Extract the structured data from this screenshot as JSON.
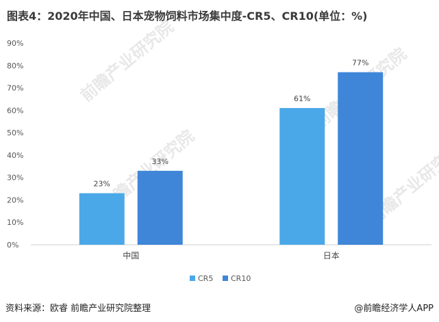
{
  "title": "图表4：2020年中国、日本宠物饲料市场集中度-CR5、CR10(单位：%)",
  "source": "资料来源：欧睿 前瞻产业研究院整理",
  "credit": "@前瞻经济学人APP",
  "watermark_text": "前瞻产业研究院",
  "chart_data": {
    "type": "bar",
    "title": "图表4：2020年中国、日本宠物饲料市场集中度-CR5、CR10(单位：%)",
    "xlabel": "",
    "ylabel": "",
    "categories": [
      "中国",
      "日本"
    ],
    "series": [
      {
        "name": "CR5",
        "values": [
          23,
          61
        ],
        "color": "#4aa8e8"
      },
      {
        "name": "CR10",
        "values": [
          33,
          77
        ],
        "color": "#3f86d8"
      }
    ],
    "data_labels": [
      [
        "23%",
        "61%"
      ],
      [
        "33%",
        "77%"
      ]
    ],
    "ylim": [
      0,
      90
    ],
    "yticks": [
      "0%",
      "10%",
      "20%",
      "30%",
      "40%",
      "50%",
      "60%",
      "70%",
      "80%",
      "90%"
    ],
    "grid": false,
    "legend_position": "bottom"
  }
}
